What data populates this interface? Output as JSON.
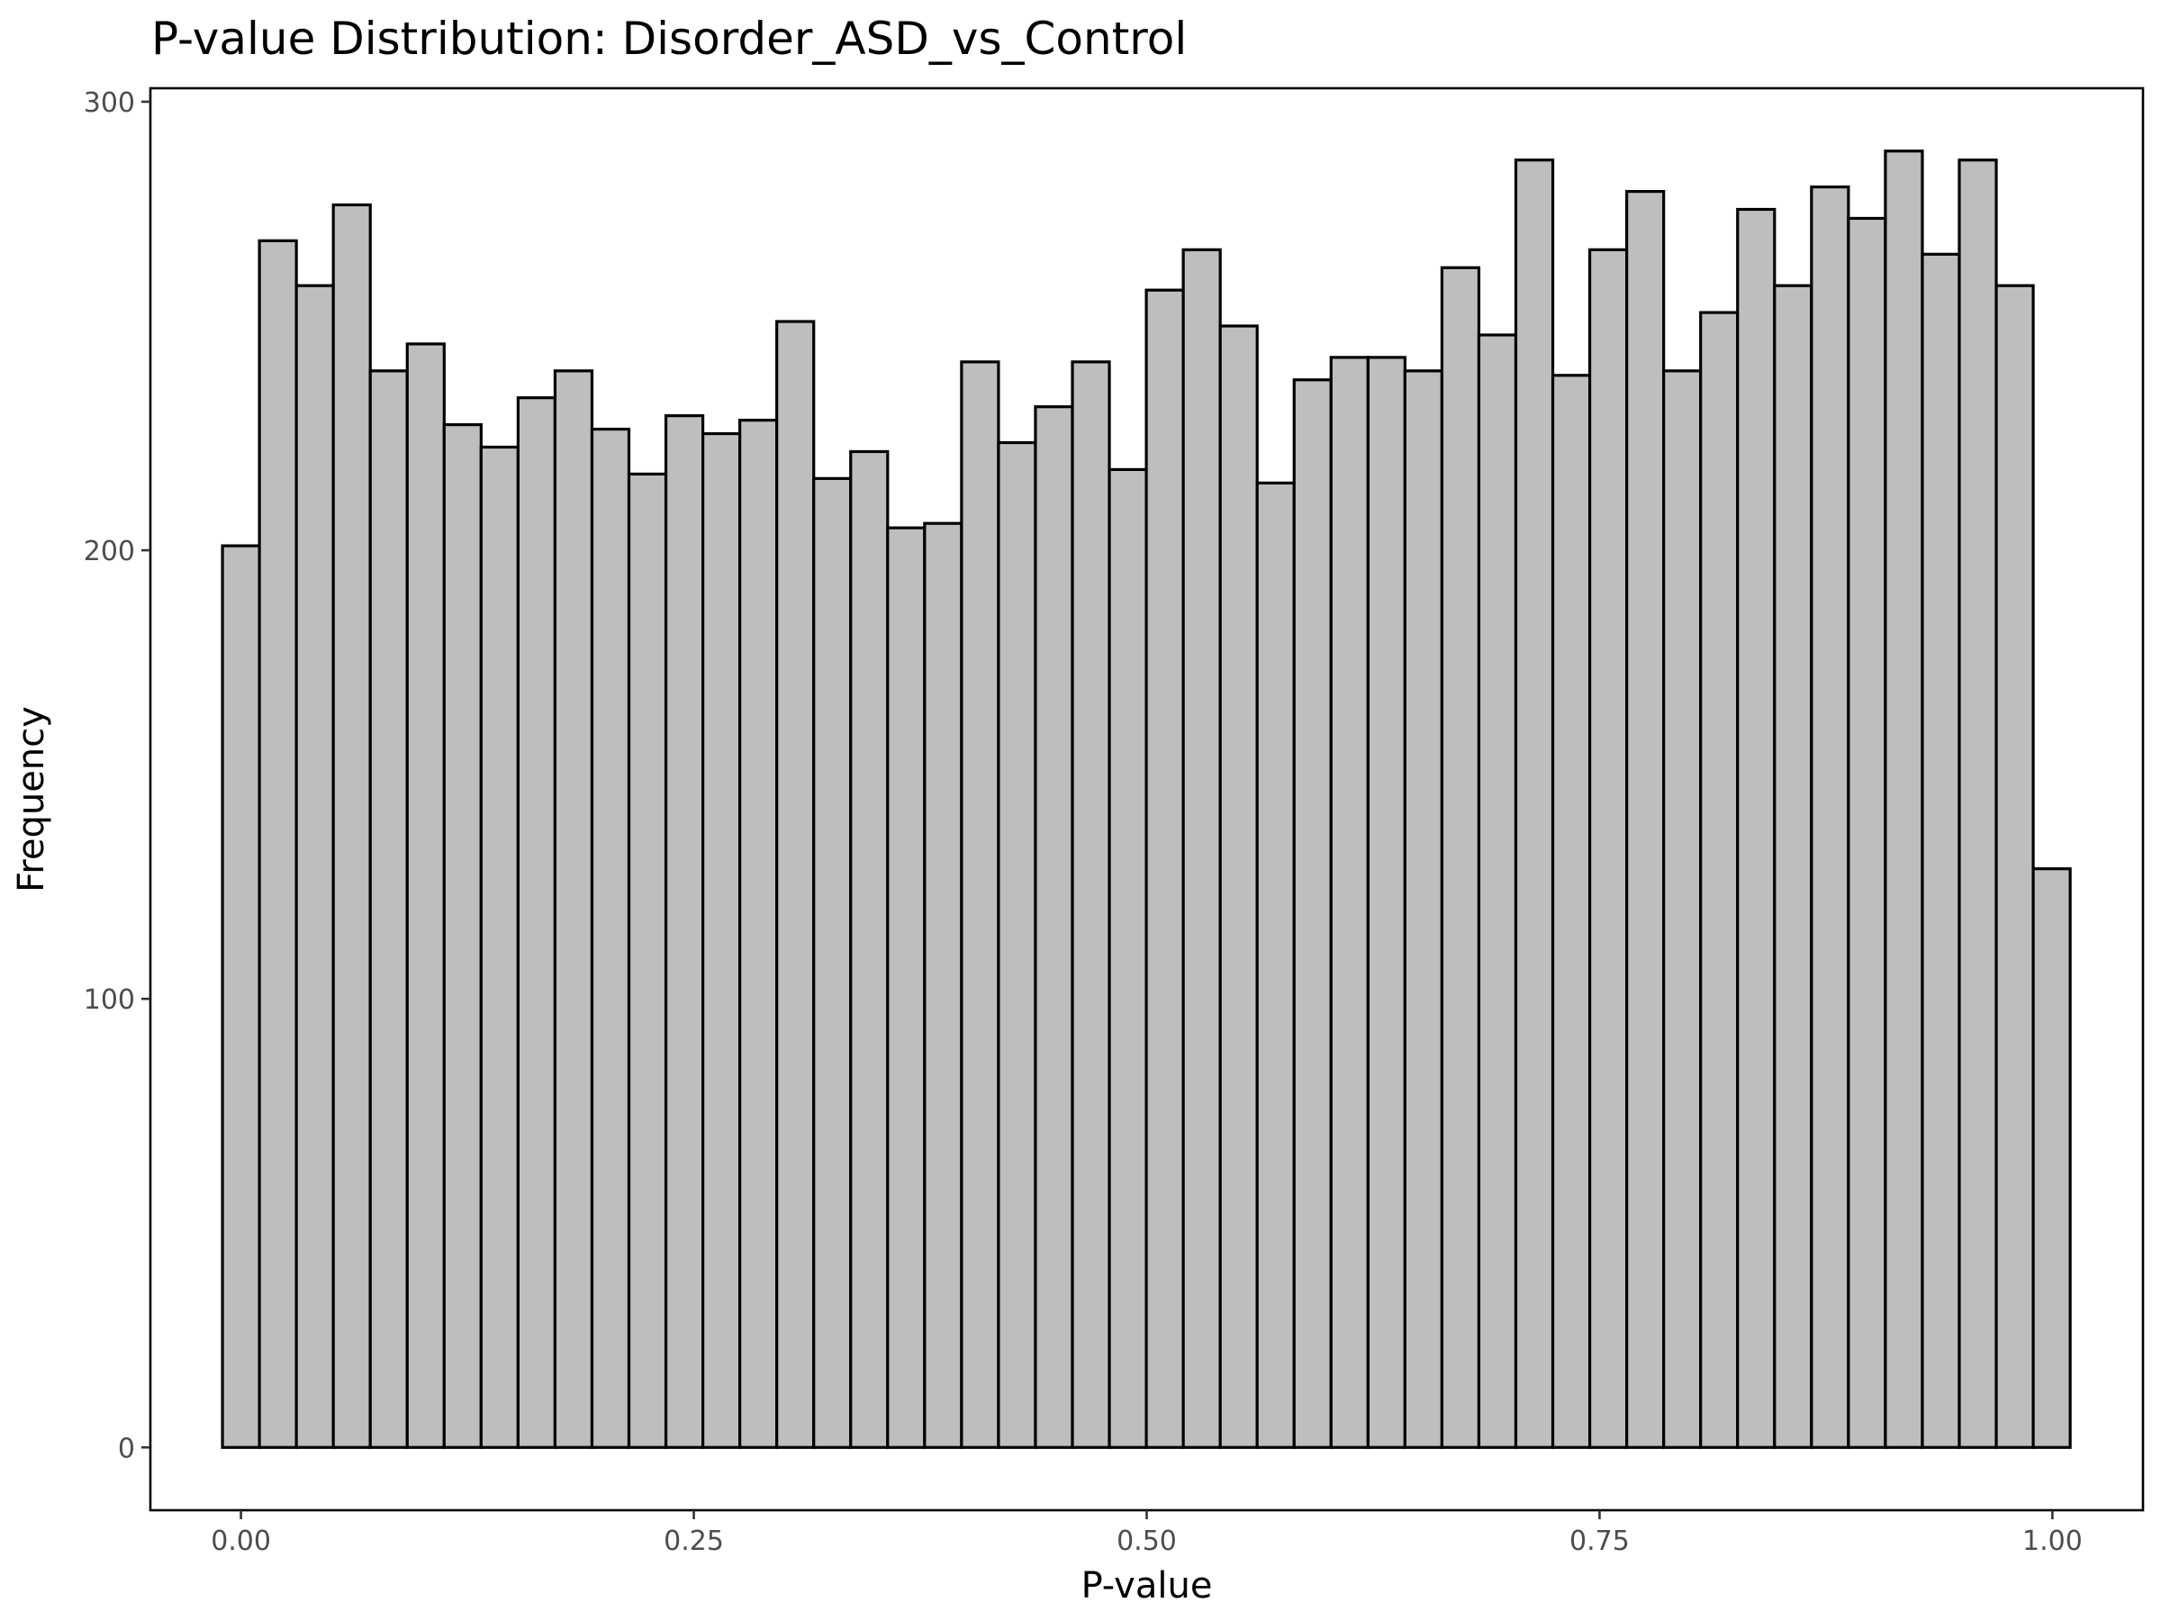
{
  "chart_data": {
    "type": "bar",
    "title": "P-value Distribution: Disorder_ASD_vs_Control",
    "xlabel": "P-value",
    "ylabel": "Frequency",
    "xlim": [
      -0.05,
      1.05
    ],
    "ylim": [
      -14,
      303
    ],
    "xticks": [
      0.0,
      0.25,
      0.5,
      0.75,
      1.0
    ],
    "xtick_labels": [
      "0.00",
      "0.25",
      "0.50",
      "0.75",
      "1.00"
    ],
    "yticks": [
      0,
      100,
      200,
      300
    ],
    "ytick_labels": [
      "0",
      "100",
      "200",
      "300"
    ],
    "bin_width": 0.0204,
    "bin_start": -0.0102,
    "values": [
      201,
      269,
      259,
      277,
      240,
      246,
      228,
      223,
      234,
      240,
      227,
      217,
      230,
      226,
      229,
      251,
      216,
      222,
      205,
      206,
      242,
      224,
      232,
      242,
      218,
      258,
      267,
      250,
      215,
      238,
      243,
      243,
      240,
      263,
      248,
      287,
      239,
      267,
      280,
      240,
      253,
      276,
      259,
      281,
      274,
      289,
      266,
      287,
      259,
      129
    ],
    "bar_fill": "#bebebe",
    "bar_stroke": "#000000",
    "grid": false,
    "legend": "none"
  }
}
